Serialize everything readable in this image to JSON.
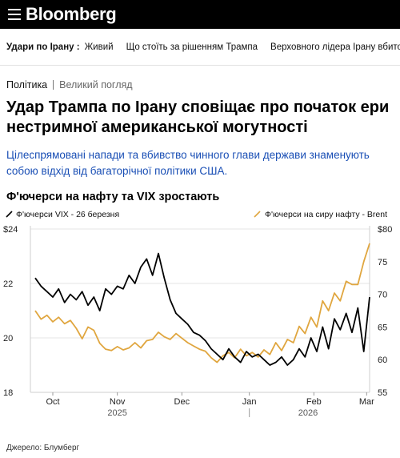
{
  "header": {
    "logo": "Bloomberg"
  },
  "ticker": {
    "label": "Удари по Ірану :",
    "items": [
      "Живий",
      "Що стоїть за рішенням Трампа",
      "Верховного лідера Ірану вбито"
    ]
  },
  "article": {
    "kicker_section": "Політика",
    "kicker_type": "Великий погляд",
    "headline": "Удар Трампа по Ірану сповіщає про початок ери нестримної американської могутності",
    "dek": "Цілеспрямовані напади та вбивство чинного глави держави знаменують собою відхід від багаторічної політики США."
  },
  "chart_data": {
    "type": "line",
    "title": "Ф'ючерси на нафту та VIX зростають",
    "source": "Джерело: Блумберг",
    "x_ticks": [
      "Oct",
      "Nov",
      "Dec",
      "Jan",
      "Feb",
      "Mar"
    ],
    "year_labels": [
      "2025",
      "2026"
    ],
    "left_axis": {
      "ticks": [
        "$24",
        "22",
        "20",
        "18"
      ],
      "range": [
        18,
        24
      ]
    },
    "right_axis": {
      "ticks": [
        "$80",
        "75",
        "70",
        "65",
        "60",
        "55"
      ],
      "range": [
        55,
        80
      ]
    },
    "series": [
      {
        "name": "Ф'ючерси VIX - 26 березня",
        "axis": "left",
        "color": "#000000",
        "x": [
          0.0,
          0.4,
          0.8,
          1.2,
          1.6,
          2.0,
          2.4,
          2.8,
          3.2,
          3.6,
          4.0,
          4.4,
          4.8,
          5.2,
          5.6,
          6.0,
          6.4,
          6.8,
          7.2,
          7.6,
          8.0,
          8.4,
          8.8,
          9.2,
          9.6,
          10.0,
          10.4,
          10.8,
          11.2,
          11.6,
          12.0,
          12.4,
          12.8,
          13.2,
          13.6,
          14.0,
          14.4,
          14.8,
          15.2,
          15.6,
          16.0,
          16.4,
          16.8,
          17.2,
          17.6,
          18.0,
          18.4,
          18.8,
          19.2,
          19.6,
          20.0,
          20.4,
          20.8,
          21.2,
          21.6,
          22.0,
          22.4,
          22.8
        ],
        "values": [
          22.2,
          21.9,
          21.7,
          21.5,
          21.8,
          21.3,
          21.6,
          21.4,
          21.7,
          21.2,
          21.5,
          21.0,
          21.8,
          21.6,
          21.9,
          21.8,
          22.3,
          22.0,
          22.6,
          22.9,
          22.3,
          23.1,
          22.2,
          21.4,
          20.9,
          20.7,
          20.5,
          20.2,
          20.1,
          19.9,
          19.6,
          19.4,
          19.2,
          19.6,
          19.3,
          19.1,
          19.5,
          19.3,
          19.4,
          19.2,
          19.0,
          19.1,
          19.3,
          19.0,
          19.2,
          19.6,
          19.3,
          20.0,
          19.5,
          20.4,
          19.6,
          20.7,
          20.3,
          20.9,
          20.2,
          21.1,
          19.5,
          21.5
        ],
        "note": "x measured in weeks from late Sep 2025"
      },
      {
        "name": "Ф'ючерси на сиру нафту - Brent",
        "axis": "right",
        "color": "#e0a63f",
        "x": [
          0.0,
          0.4,
          0.8,
          1.2,
          1.6,
          2.0,
          2.4,
          2.8,
          3.2,
          3.6,
          4.0,
          4.4,
          4.8,
          5.2,
          5.6,
          6.0,
          6.4,
          6.8,
          7.2,
          7.6,
          8.0,
          8.4,
          8.8,
          9.2,
          9.6,
          10.0,
          10.4,
          10.8,
          11.2,
          11.6,
          12.0,
          12.4,
          12.8,
          13.2,
          13.6,
          14.0,
          14.4,
          14.8,
          15.2,
          15.6,
          16.0,
          16.4,
          16.8,
          17.2,
          17.6,
          18.0,
          18.4,
          18.8,
          19.2,
          19.6,
          20.0,
          20.4,
          20.8,
          21.2,
          21.6,
          22.0,
          22.4,
          22.8
        ],
        "values": [
          67.5,
          66.2,
          66.8,
          65.8,
          66.5,
          65.5,
          66.0,
          64.8,
          63.2,
          65.0,
          64.5,
          62.5,
          61.6,
          61.4,
          62.0,
          61.5,
          61.8,
          62.6,
          61.8,
          62.9,
          63.1,
          64.2,
          63.5,
          63.1,
          64.0,
          63.3,
          62.6,
          62.1,
          61.6,
          61.3,
          60.3,
          59.6,
          60.6,
          61.1,
          60.3,
          61.6,
          60.6,
          61.1,
          60.4,
          61.5,
          60.8,
          62.6,
          61.4,
          63.1,
          62.6,
          65.1,
          64.0,
          66.5,
          65.0,
          69.0,
          67.5,
          70.2,
          69.0,
          72.0,
          71.5,
          71.5,
          75.0,
          77.8
        ],
        "note": "x measured in weeks from late Sep 2025"
      }
    ]
  }
}
